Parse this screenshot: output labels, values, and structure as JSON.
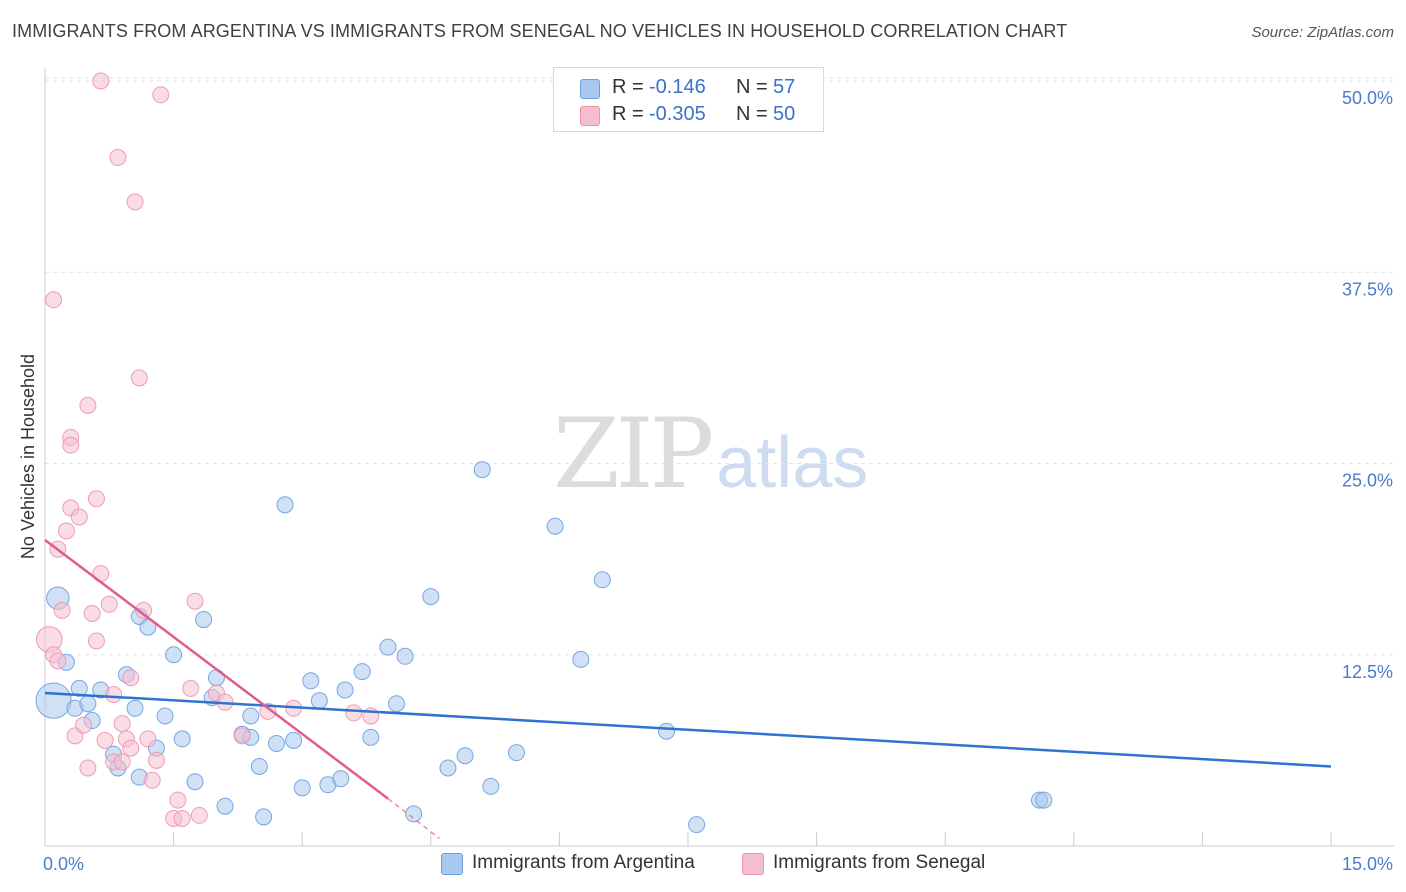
{
  "title": "IMMIGRANTS FROM ARGENTINA VS IMMIGRANTS FROM SENEGAL NO VEHICLES IN HOUSEHOLD CORRELATION CHART",
  "source": "Source: ZipAtlas.com",
  "watermark": {
    "zip": "ZIP",
    "atlas": "atlas"
  },
  "legend": {
    "rows": [
      {
        "r_label": "R =",
        "r_value": "-0.146",
        "n_label": "N =",
        "n_value": "57"
      },
      {
        "r_label": "R =",
        "r_value": "-0.305",
        "n_label": "N =",
        "n_value": "50"
      }
    ]
  },
  "bottom_legend": {
    "argentina": "Immigrants from Argentina",
    "senegal": "Immigrants from Senegal"
  },
  "colors": {
    "argentina_fill": "#a9c8ef",
    "argentina_stroke": "#6a9fde",
    "argentina_line": "#2f73cf",
    "senegal_fill": "#f6bfd0",
    "senegal_stroke": "#ec93b1",
    "senegal_line": "#e05c8a",
    "tick_text": "#4a7cc9",
    "grid": "#e3e3e3"
  },
  "chart_data": {
    "type": "scatter",
    "title": "IMMIGRANTS FROM ARGENTINA VS IMMIGRANTS FROM SENEGAL NO VEHICLES IN HOUSEHOLD CORRELATION CHART",
    "xlabel": "",
    "ylabel": "No Vehicles in Household",
    "xlim": [
      0,
      15
    ],
    "ylim": [
      0,
      50
    ],
    "x_tick_labels": [
      "0.0%",
      "15.0%"
    ],
    "y_ticks": [
      12.5,
      25.0,
      37.5,
      50.0
    ],
    "y_tick_labels": [
      "12.5%",
      "25.0%",
      "37.5%",
      "50.0%"
    ],
    "grid": true,
    "legend_position": "top-center",
    "series": [
      {
        "name": "Immigrants from Argentina",
        "r": -0.146,
        "n": 57,
        "trend": {
          "x": [
            0,
            15
          ],
          "y": [
            10.0,
            5.2
          ]
        },
        "points": [
          [
            0.1,
            9.5,
            2.2
          ],
          [
            0.15,
            16.2,
            1.4
          ],
          [
            0.25,
            12.0,
            1
          ],
          [
            0.35,
            9.0,
            1
          ],
          [
            0.4,
            10.3,
            1
          ],
          [
            0.55,
            8.2,
            1
          ],
          [
            0.5,
            9.3,
            1
          ],
          [
            0.65,
            10.2,
            1
          ],
          [
            0.8,
            6.0,
            1
          ],
          [
            0.85,
            5.1,
            1
          ],
          [
            0.95,
            11.2,
            1
          ],
          [
            1.05,
            9.0,
            1
          ],
          [
            1.1,
            15.0,
            1
          ],
          [
            1.1,
            4.5,
            1
          ],
          [
            1.3,
            6.4,
            1
          ],
          [
            1.4,
            8.5,
            1
          ],
          [
            1.5,
            12.5,
            1
          ],
          [
            1.6,
            7.0,
            1
          ],
          [
            1.75,
            4.2,
            1
          ],
          [
            1.85,
            14.8,
            1
          ],
          [
            1.95,
            9.7,
            1
          ],
          [
            2.0,
            11.0,
            1
          ],
          [
            2.1,
            2.6,
            1
          ],
          [
            2.3,
            7.3,
            1
          ],
          [
            2.4,
            8.5,
            1
          ],
          [
            2.5,
            5.2,
            1
          ],
          [
            2.55,
            1.9,
            1
          ],
          [
            2.7,
            6.7,
            1
          ],
          [
            2.8,
            22.3,
            1
          ],
          [
            2.9,
            6.9,
            1
          ],
          [
            3.0,
            3.8,
            1
          ],
          [
            3.1,
            10.8,
            1
          ],
          [
            3.2,
            9.5,
            1
          ],
          [
            3.3,
            4.0,
            1
          ],
          [
            3.45,
            4.4,
            1
          ],
          [
            3.5,
            10.2,
            1
          ],
          [
            3.7,
            11.4,
            1
          ],
          [
            3.8,
            7.1,
            1
          ],
          [
            4.0,
            13.0,
            1
          ],
          [
            4.1,
            9.3,
            1
          ],
          [
            4.2,
            12.4,
            1
          ],
          [
            4.3,
            2.1,
            1
          ],
          [
            4.5,
            16.3,
            1
          ],
          [
            4.7,
            5.1,
            1
          ],
          [
            4.9,
            5.9,
            1
          ],
          [
            5.1,
            24.6,
            1
          ],
          [
            5.2,
            3.9,
            1
          ],
          [
            5.5,
            6.1,
            1
          ],
          [
            5.95,
            20.9,
            1
          ],
          [
            6.25,
            12.2,
            1
          ],
          [
            6.5,
            17.4,
            1
          ],
          [
            7.25,
            7.5,
            1
          ],
          [
            7.6,
            1.4,
            1
          ],
          [
            11.6,
            3.0,
            1
          ],
          [
            11.65,
            3.0,
            1
          ],
          [
            1.2,
            14.3,
            1
          ],
          [
            2.4,
            7.1,
            1
          ]
        ]
      },
      {
        "name": "Immigrants from Senegal",
        "r": -0.305,
        "n": 50,
        "trend": {
          "x": [
            0,
            4.0
          ],
          "y": [
            20.0,
            3.1
          ]
        },
        "trend_dashed": {
          "x": [
            4.0,
            4.6
          ],
          "y": [
            3.1,
            0.5
          ]
        },
        "points": [
          [
            0.05,
            13.5,
            1.6
          ],
          [
            0.1,
            12.5,
            1
          ],
          [
            0.1,
            35.7,
            1
          ],
          [
            0.15,
            12.1,
            1
          ],
          [
            0.15,
            19.4,
            1
          ],
          [
            0.2,
            15.4,
            1
          ],
          [
            0.25,
            20.6,
            1
          ],
          [
            0.3,
            26.7,
            1
          ],
          [
            0.3,
            26.2,
            1
          ],
          [
            0.3,
            22.1,
            1
          ],
          [
            0.35,
            7.2,
            1
          ],
          [
            0.4,
            21.5,
            1
          ],
          [
            0.45,
            7.9,
            1
          ],
          [
            0.5,
            5.1,
            1
          ],
          [
            0.5,
            28.8,
            1
          ],
          [
            0.55,
            15.2,
            1
          ],
          [
            0.6,
            22.7,
            1
          ],
          [
            0.6,
            13.4,
            1
          ],
          [
            0.65,
            17.8,
            1
          ],
          [
            0.7,
            6.9,
            1
          ],
          [
            0.75,
            15.8,
            1
          ],
          [
            0.8,
            9.9,
            1
          ],
          [
            0.8,
            5.5,
            1
          ],
          [
            0.85,
            45.0,
            1
          ],
          [
            0.9,
            8.0,
            1
          ],
          [
            0.95,
            7.0,
            1
          ],
          [
            1.0,
            6.4,
            1
          ],
          [
            1.0,
            11.0,
            1
          ],
          [
            1.05,
            42.1,
            1
          ],
          [
            1.1,
            30.6,
            1
          ],
          [
            1.15,
            15.4,
            1
          ],
          [
            1.2,
            7.0,
            1
          ],
          [
            1.25,
            4.3,
            1
          ],
          [
            1.3,
            5.6,
            1
          ],
          [
            1.35,
            49.1,
            1
          ],
          [
            1.5,
            1.8,
            1
          ],
          [
            1.55,
            3.0,
            1
          ],
          [
            1.6,
            1.8,
            1
          ],
          [
            1.7,
            10.3,
            1
          ],
          [
            1.75,
            16.0,
            1
          ],
          [
            1.8,
            2.0,
            1
          ],
          [
            2.0,
            10.0,
            1
          ],
          [
            2.1,
            9.4,
            1
          ],
          [
            2.3,
            7.2,
            1
          ],
          [
            2.6,
            8.8,
            1
          ],
          [
            2.9,
            9.0,
            1
          ],
          [
            3.6,
            8.7,
            1
          ],
          [
            3.8,
            8.5,
            1
          ],
          [
            0.65,
            50.0,
            1
          ],
          [
            0.9,
            5.5,
            1
          ]
        ]
      }
    ]
  }
}
